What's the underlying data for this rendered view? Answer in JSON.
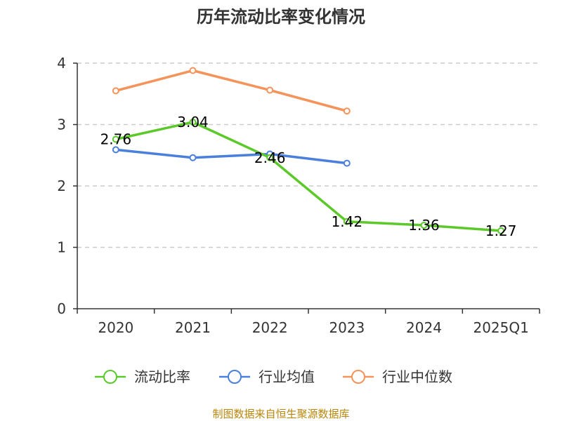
{
  "chart_data": {
    "type": "line",
    "title": "历年流动比率变化情况",
    "categories": [
      "2020",
      "2021",
      "2022",
      "2023",
      "2024",
      "2025Q1"
    ],
    "ylim": [
      0,
      4
    ],
    "yticks": [
      0,
      1,
      2,
      3,
      4
    ],
    "grid": "horizontal-dashed",
    "legend_position": "bottom",
    "series": [
      {
        "name": "流动比率",
        "color": "#5cc92a",
        "values": [
          2.76,
          3.04,
          2.46,
          1.42,
          1.36,
          1.27
        ],
        "labels": [
          "2.76",
          "3.04",
          "2.46",
          "1.42",
          "1.36",
          "1.27"
        ]
      },
      {
        "name": "行业均值",
        "color": "#4a7fdb",
        "values": [
          2.59,
          2.46,
          2.52,
          2.37,
          null,
          null
        ]
      },
      {
        "name": "行业中位数",
        "color": "#f4935a",
        "values": [
          3.55,
          3.88,
          3.56,
          3.22,
          null,
          null
        ]
      }
    ]
  },
  "footer": {
    "source": "制图数据来自恒生聚源数据库"
  }
}
